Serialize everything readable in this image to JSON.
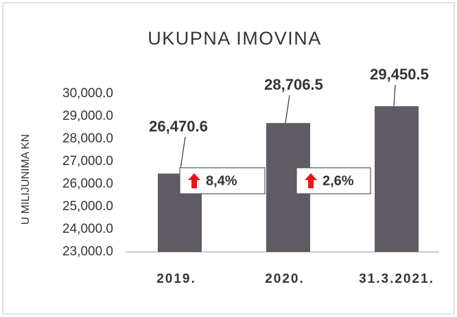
{
  "chart_data": {
    "type": "bar",
    "title": "UKUPNA IMOVINA",
    "y_label": "U MILIJUNIMA KN",
    "categories": [
      "2019.",
      "2020.",
      "31.3.2021."
    ],
    "values": [
      26470.6,
      28706.5,
      29450.5
    ],
    "value_labels": [
      "26,470.6",
      "28,706.5",
      "29,450.5"
    ],
    "color": "#5f5a63",
    "ylim": [
      23000,
      30000
    ],
    "yticks": [
      {
        "value": 23000,
        "label": "23,000.0"
      },
      {
        "value": 24000,
        "label": "24,000.0"
      },
      {
        "value": 25000,
        "label": "25,000.0"
      },
      {
        "value": 26000,
        "label": "26,000.0"
      },
      {
        "value": 27000,
        "label": "27,000.0"
      },
      {
        "value": 28000,
        "label": "28,000.0"
      },
      {
        "value": 29000,
        "label": "29,000.0"
      },
      {
        "value": 30000,
        "label": "30,000.0"
      }
    ],
    "annotations": [
      "8,4%",
      "2,6%"
    ],
    "grid": false
  }
}
